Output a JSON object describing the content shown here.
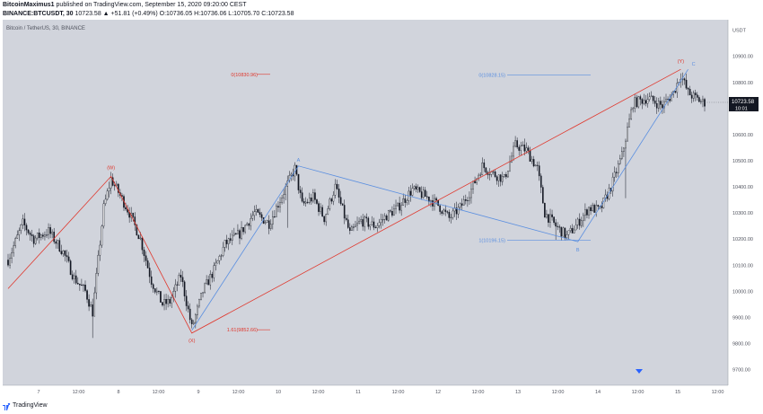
{
  "header": {
    "publisher": "BitcoinMaximus1",
    "published_text": "published on TradingView.com, September 15, 2020 09:20:00 CEST",
    "symbol": "BINANCE:BTCUSDT, 30",
    "ohlc": "10723.58 ▲ +51.81 (+0.49%) O:10736.05 H:10736.06 L:10705.70 C:10723.58"
  },
  "chart_title": "Bitcoin / TetherUS, 30, BINANCE",
  "footer": {
    "brand": "TradingView"
  },
  "colors": {
    "background": "#d1d4dc",
    "red": "#e0372c",
    "blue": "#5b8fe0",
    "candle": "#131722",
    "price_tag": "#131722"
  },
  "chart_data": {
    "type": "candlestick",
    "y_unit": "USDT",
    "ylim": [
      9640,
      11040
    ],
    "y_ticks": [
      9700,
      9800,
      9900,
      10000,
      10100,
      10200,
      10300,
      10400,
      10500,
      10600,
      10700,
      10800,
      10900,
      11000
    ],
    "y_tick_labels": [
      "9700.00",
      "9800.00",
      "9900.00",
      "10000.00",
      "10100.00",
      "10200.00",
      "10300.00",
      "10400.00",
      "10500.00",
      "10600.00",
      "10700.00",
      "10800.00",
      "10900.00",
      "USDT"
    ],
    "x_tick_labels": [
      "7",
      "12:00",
      "8",
      "12:00",
      "9",
      "12:00",
      "10",
      "12:00",
      "11",
      "12:00",
      "12",
      "12:00",
      "13",
      "12:00",
      "14",
      "12:00",
      "15",
      "12:00"
    ],
    "last_price": "10723.58",
    "countdown": "10:01",
    "path_points": [
      [
        0,
        10120
      ],
      [
        8,
        10260
      ],
      [
        14,
        10200
      ],
      [
        22,
        10230
      ],
      [
        30,
        10150
      ],
      [
        36,
        10050
      ],
      [
        42,
        10000
      ],
      [
        46,
        9920
      ],
      [
        52,
        10320
      ],
      [
        56,
        10430
      ],
      [
        60,
        10380
      ],
      [
        66,
        10300
      ],
      [
        72,
        10200
      ],
      [
        78,
        10040
      ],
      [
        84,
        9950
      ],
      [
        88,
        9960
      ],
      [
        94,
        10060
      ],
      [
        100,
        9860
      ],
      [
        106,
        10000
      ],
      [
        112,
        10080
      ],
      [
        118,
        10180
      ],
      [
        126,
        10220
      ],
      [
        134,
        10300
      ],
      [
        142,
        10260
      ],
      [
        150,
        10380
      ],
      [
        156,
        10470
      ],
      [
        160,
        10330
      ],
      [
        166,
        10360
      ],
      [
        172,
        10280
      ],
      [
        178,
        10400
      ],
      [
        186,
        10220
      ],
      [
        192,
        10270
      ],
      [
        200,
        10250
      ],
      [
        206,
        10290
      ],
      [
        212,
        10320
      ],
      [
        220,
        10390
      ],
      [
        228,
        10360
      ],
      [
        234,
        10330
      ],
      [
        240,
        10280
      ],
      [
        246,
        10320
      ],
      [
        252,
        10390
      ],
      [
        258,
        10480
      ],
      [
        264,
        10450
      ],
      [
        270,
        10430
      ],
      [
        276,
        10560
      ],
      [
        282,
        10540
      ],
      [
        288,
        10470
      ],
      [
        292,
        10300
      ],
      [
        298,
        10250
      ],
      [
        304,
        10210
      ],
      [
        310,
        10260
      ],
      [
        316,
        10320
      ],
      [
        322,
        10310
      ],
      [
        328,
        10400
      ],
      [
        334,
        10520
      ],
      [
        340,
        10720
      ],
      [
        348,
        10740
      ],
      [
        356,
        10710
      ],
      [
        362,
        10760
      ],
      [
        366,
        10830
      ],
      [
        370,
        10760
      ],
      [
        374,
        10740
      ],
      [
        378,
        10723.58
      ]
    ],
    "annotations": {
      "red_wave": [
        {
          "i": 0,
          "y": 10010
        },
        {
          "i": 56,
          "y": 10440,
          "label": "(W)"
        },
        {
          "i": 100,
          "y": 9840,
          "label": "(X)"
        },
        {
          "i": 366,
          "y": 10850,
          "label": "(Y)"
        }
      ],
      "blue_wave": [
        {
          "i": 100,
          "y": 9850
        },
        {
          "i": 158,
          "y": 10480,
          "label": "A"
        },
        {
          "i": 310,
          "y": 10190,
          "label": "B"
        },
        {
          "i": 370,
          "y": 10850,
          "label": "C"
        }
      ],
      "fib_levels": [
        {
          "label": "0(10830.96)",
          "y": 10830.96,
          "color": "red"
        },
        {
          "label": "1.61(9852.66)",
          "y": 9852.66,
          "color": "red"
        },
        {
          "label": "0(10828.15)",
          "y": 10828.15,
          "color": "blue"
        },
        {
          "label": "1(10196.15)",
          "y": 10196.15,
          "color": "blue"
        }
      ]
    }
  }
}
